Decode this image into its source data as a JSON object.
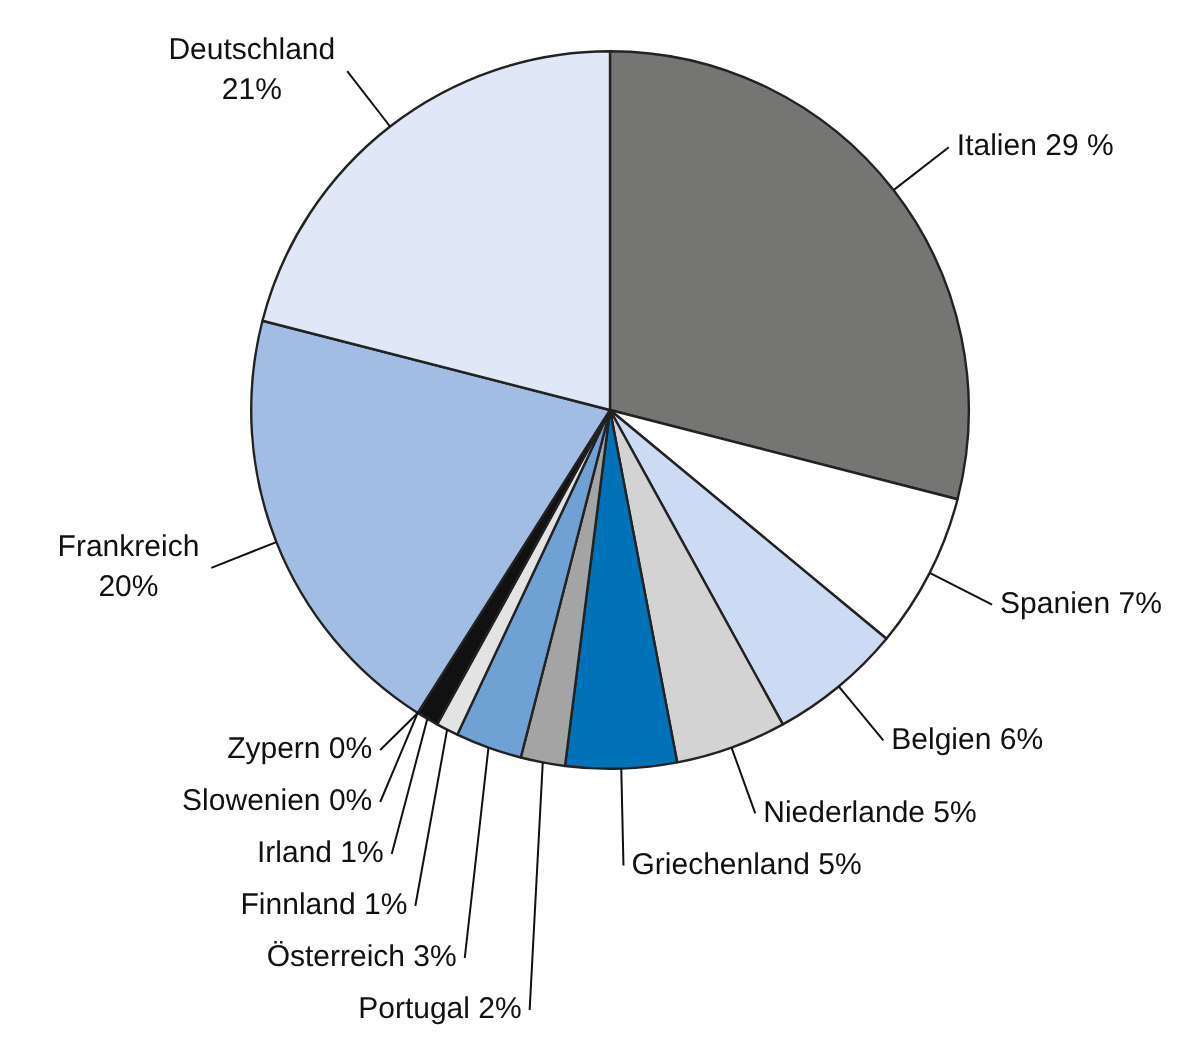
{
  "chart_data": {
    "type": "pie",
    "categories": [
      "Italien",
      "Spanien",
      "Belgien",
      "Niederlande",
      "Griechenland",
      "Portugal",
      "Österreich",
      "Finnland",
      "Irland",
      "Zypern",
      "Slowenien",
      "Frankreich",
      "Deutschland"
    ],
    "values": [
      29,
      7,
      6,
      5,
      5,
      2,
      3,
      1,
      1,
      0,
      0,
      20,
      21
    ],
    "value_labels": [
      "29 %",
      "7%",
      "6%",
      "5%",
      "5%",
      "2%",
      "3%",
      "1%",
      "1%",
      "0%",
      "0%",
      "20%",
      "21%"
    ],
    "colors": [
      "#757573",
      "#ffffff",
      "#ccdaf3",
      "#d2d3d2",
      "#0072b7",
      "#a3a4a3",
      "#6fa1d4",
      "#e3e3e3",
      "#111111",
      "#ffffff",
      "#ffffff",
      "#a1bde4",
      "#e0e7f7"
    ]
  }
}
